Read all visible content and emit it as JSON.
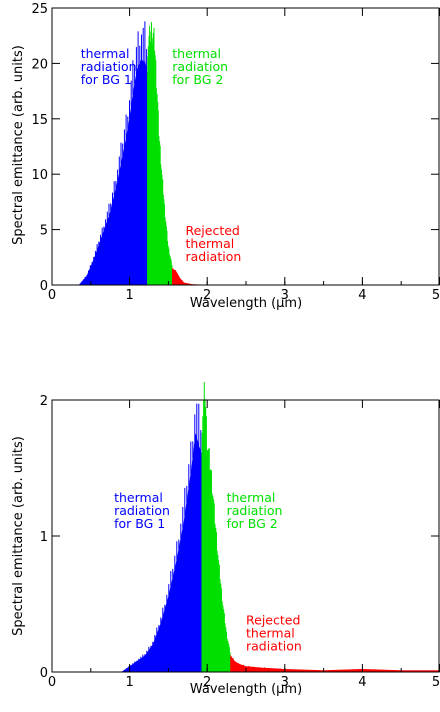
{
  "colors": {
    "bg1": "#0000ff",
    "bg2": "#00e000",
    "rejected": "#ff0000",
    "axes": "#000000"
  },
  "chart_data": [
    {
      "type": "area",
      "xlabel": "Wavelength (μm)",
      "ylabel": "Spectral emittance (arb. units)",
      "xlim": [
        0,
        5
      ],
      "ylim": [
        0,
        25
      ],
      "xticks": [
        0,
        1,
        2,
        3,
        4,
        5
      ],
      "yticks": [
        0,
        5,
        10,
        15,
        20,
        25
      ],
      "xtick_labels": [
        "0",
        "1",
        "2",
        "3",
        "4",
        "5"
      ],
      "ytick_labels": [
        "0",
        "5",
        "10",
        "15",
        "20",
        "25"
      ],
      "grid": false,
      "cutoffs": {
        "bg1": 1.23,
        "bg2": 1.55
      },
      "series": [
        {
          "name": "thermal radiation for BG 1",
          "color": "#0000ff",
          "x": [
            0.35,
            0.45,
            0.55,
            0.65,
            0.75,
            0.85,
            0.95,
            1.0,
            1.05,
            1.1,
            1.15,
            1.2,
            1.23
          ],
          "y": [
            0,
            0.8,
            2.5,
            4.5,
            6.5,
            9.5,
            13,
            15,
            17.5,
            19.5,
            20.3,
            20.1,
            19
          ]
        },
        {
          "name": "thermal radiation for BG 2",
          "color": "#00e000",
          "x": [
            1.23,
            1.28,
            1.32,
            1.35,
            1.38,
            1.42,
            1.46,
            1.5,
            1.55
          ],
          "y": [
            19,
            20.4,
            19.5,
            16,
            12,
            8.5,
            5.5,
            3,
            1.5
          ]
        },
        {
          "name": "Rejected thermal radiation",
          "color": "#ff0000",
          "x": [
            1.55,
            1.6,
            1.65,
            1.7,
            1.8,
            1.9,
            2.0,
            5.0
          ],
          "y": [
            1.5,
            1.2,
            0.6,
            0.2,
            0.05,
            0.02,
            0,
            0
          ]
        }
      ],
      "annotations": [
        {
          "lines": [
            "thermal",
            "radiation",
            "for BG 1"
          ],
          "color": "#0000ff",
          "x": 0.37,
          "y": 20.5
        },
        {
          "lines": [
            "thermal",
            "radiation",
            "for BG 2"
          ],
          "color": "#00e000",
          "x": 1.55,
          "y": 20.5
        },
        {
          "lines": [
            "Rejected",
            "thermal",
            "radiation"
          ],
          "color": "#ff0000",
          "x": 1.72,
          "y": 4.5
        }
      ]
    },
    {
      "type": "area",
      "xlabel": "Wavelength (μm)",
      "ylabel": "Spectral emittance (arb. units)",
      "xlim": [
        0,
        5
      ],
      "ylim": [
        0,
        2
      ],
      "xticks": [
        0,
        1,
        2,
        3,
        4,
        5
      ],
      "yticks": [
        0,
        1,
        2
      ],
      "xtick_labels": [
        "0",
        "1",
        "2",
        "3",
        "4",
        "5"
      ],
      "ytick_labels": [
        "0",
        "1",
        "2"
      ],
      "grid": false,
      "cutoffs": {
        "bg1": 1.93,
        "bg2": 2.3
      },
      "series": [
        {
          "name": "thermal radiation for BG 1",
          "color": "#0000ff",
          "x": [
            0.9,
            1.0,
            1.1,
            1.2,
            1.3,
            1.4,
            1.5,
            1.6,
            1.7,
            1.8,
            1.85,
            1.9,
            1.93
          ],
          "y": [
            0,
            0.04,
            0.08,
            0.12,
            0.2,
            0.35,
            0.55,
            0.8,
            1.1,
            1.5,
            1.75,
            1.65,
            1.6
          ]
        },
        {
          "name": "thermal radiation for BG 2",
          "color": "#00e000",
          "x": [
            1.93,
            1.97,
            2.0,
            2.05,
            2.1,
            2.15,
            2.2,
            2.25,
            2.3
          ],
          "y": [
            1.6,
            1.85,
            1.5,
            1.3,
            1.0,
            0.7,
            0.45,
            0.25,
            0.12
          ]
        },
        {
          "name": "Rejected thermal radiation",
          "color": "#ff0000",
          "x": [
            2.3,
            2.35,
            2.4,
            2.5,
            2.7,
            3.0,
            3.5,
            4.0,
            4.5,
            5.0
          ],
          "y": [
            0.12,
            0.08,
            0.06,
            0.04,
            0.03,
            0.02,
            0.01,
            0.02,
            0.01,
            0.01
          ]
        }
      ],
      "annotations": [
        {
          "lines": [
            "thermal",
            "radiation",
            "for BG 1"
          ],
          "color": "#0000ff",
          "x": 0.8,
          "y": 1.25
        },
        {
          "lines": [
            "thermal",
            "radiation",
            "for BG 2"
          ],
          "color": "#00e000",
          "x": 2.25,
          "y": 1.25
        },
        {
          "lines": [
            "Rejected",
            "thermal",
            "radiation"
          ],
          "color": "#ff0000",
          "x": 2.5,
          "y": 0.35
        }
      ]
    }
  ]
}
